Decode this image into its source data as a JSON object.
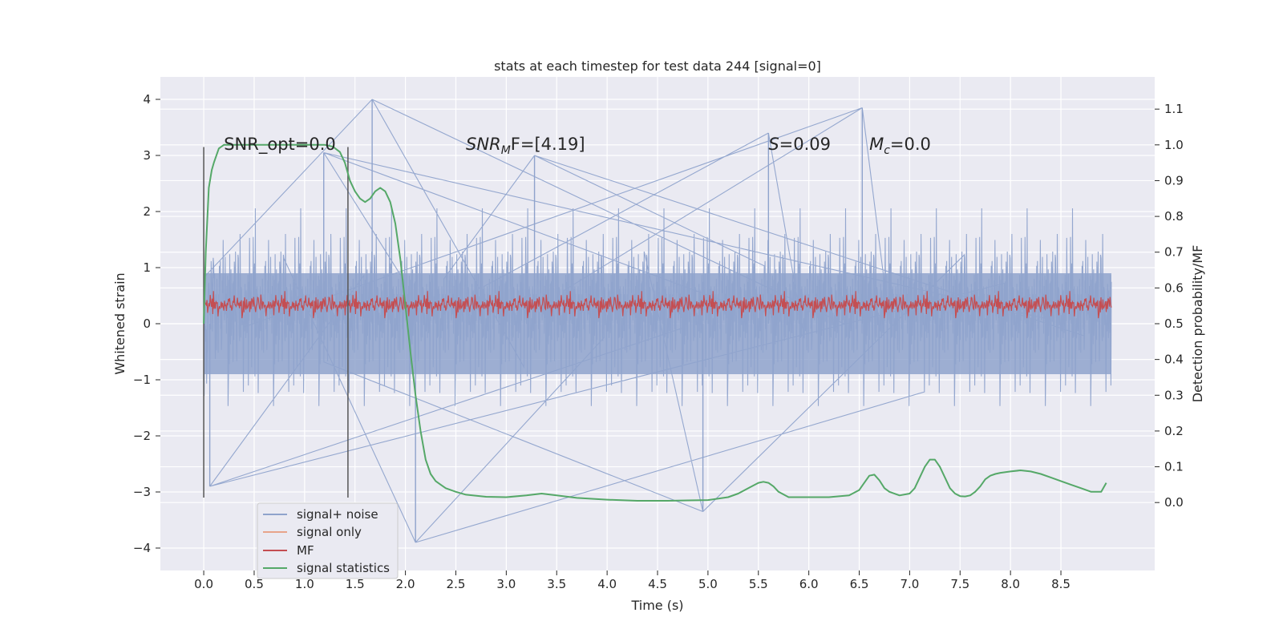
{
  "chart_data": {
    "type": "line",
    "title": "stats at each timestep for test data 244 [signal=0]",
    "xlabel": "Time (s)",
    "ylabel": "Whitened strain",
    "y2label": "Detection probability/MF",
    "xlim": [
      -0.43,
      9.43
    ],
    "ylim": [
      -4.4,
      4.4
    ],
    "y2lim": [
      -0.19,
      1.19
    ],
    "xticks": [
      0.0,
      0.5,
      1.0,
      1.5,
      2.0,
      2.5,
      3.0,
      3.5,
      4.0,
      4.5,
      5.0,
      5.5,
      6.0,
      6.5,
      7.0,
      7.5,
      8.0,
      8.5
    ],
    "xtick_labels": [
      "0.0",
      "0.5",
      "1.0",
      "1.5",
      "2.0",
      "2.5",
      "3.0",
      "3.5",
      "4.0",
      "4.5",
      "5.0",
      "5.5",
      "6.0",
      "6.5",
      "7.0",
      "7.5",
      "8.0",
      "8.5"
    ],
    "yticks": [
      4,
      3,
      2,
      1,
      0,
      -1,
      -2,
      -3,
      -4
    ],
    "ytick_labels": [
      "4",
      "3",
      "2",
      "1",
      "0",
      "−1",
      "−2",
      "−3",
      "−4"
    ],
    "y2ticks": [
      1.1,
      1.0,
      0.9,
      0.8,
      0.7,
      0.6,
      0.5,
      0.4,
      0.3,
      0.2,
      0.1,
      0.0
    ],
    "y2tick_labels": [
      "1.1",
      "1.0",
      "0.9",
      "0.8",
      "0.7",
      "0.6",
      "0.5",
      "0.4",
      "0.3",
      "0.2",
      "0.1",
      "0.0"
    ],
    "grid": true,
    "legend_position": "lower-left",
    "legend": [
      {
        "name": "signal+ noise",
        "color": "#8fa3cc"
      },
      {
        "name": "signal only",
        "color": "#e8a48a"
      },
      {
        "name": "MF",
        "color": "#c44e52"
      },
      {
        "name": "signal statistics",
        "color": "#55a868"
      }
    ],
    "noise": {
      "name": "signal+ noise",
      "axis": "left",
      "x_range": [
        0.0,
        9.0
      ],
      "typical_envelope": [
        -2.1,
        2.0
      ],
      "max": 4.0,
      "min": -3.9,
      "peaks": [
        {
          "x": 1.67,
          "y": 4.0
        },
        {
          "x": 6.53,
          "y": 3.85
        },
        {
          "x": 2.1,
          "y": -3.9
        },
        {
          "x": 4.95,
          "y": -3.35
        },
        {
          "x": 0.06,
          "y": -2.9
        },
        {
          "x": 1.19,
          "y": 3.05
        },
        {
          "x": 3.28,
          "y": 3.0
        },
        {
          "x": 5.6,
          "y": 3.4
        }
      ]
    },
    "mf": {
      "name": "MF",
      "axis": "left",
      "x_range": [
        0.0,
        9.0
      ],
      "band_center": 0.3,
      "band_low": 0.1,
      "band_high": 0.6,
      "max": 0.9,
      "min": 0.05
    },
    "signal_statistics": {
      "name": "signal statistics",
      "axis": "right",
      "x": [
        0.0,
        0.02,
        0.05,
        0.08,
        0.1,
        0.15,
        0.2,
        0.3,
        0.5,
        0.8,
        1.0,
        1.1,
        1.2,
        1.28,
        1.35,
        1.4,
        1.45,
        1.5,
        1.55,
        1.6,
        1.65,
        1.7,
        1.75,
        1.8,
        1.85,
        1.9,
        1.95,
        2.0,
        2.05,
        2.1,
        2.15,
        2.2,
        2.25,
        2.3,
        2.35,
        2.4,
        2.5,
        2.6,
        2.8,
        3.0,
        3.2,
        3.35,
        3.5,
        3.7,
        4.0,
        4.3,
        4.6,
        4.8,
        5.0,
        5.2,
        5.3,
        5.4,
        5.5,
        5.55,
        5.6,
        5.65,
        5.7,
        5.8,
        6.0,
        6.2,
        6.4,
        6.5,
        6.55,
        6.6,
        6.65,
        6.7,
        6.75,
        6.8,
        6.9,
        7.0,
        7.05,
        7.1,
        7.15,
        7.2,
        7.25,
        7.3,
        7.35,
        7.4,
        7.45,
        7.5,
        7.55,
        7.6,
        7.65,
        7.7,
        7.75,
        7.8,
        7.85,
        7.9,
        8.0,
        8.1,
        8.2,
        8.3,
        8.4,
        8.5,
        8.6,
        8.7,
        8.8,
        8.9,
        8.95
      ],
      "y": [
        0.5,
        0.7,
        0.88,
        0.93,
        0.95,
        0.99,
        1.0,
        1.0,
        1.0,
        1.0,
        1.0,
        1.0,
        1.0,
        0.995,
        0.98,
        0.95,
        0.9,
        0.87,
        0.85,
        0.84,
        0.85,
        0.87,
        0.88,
        0.87,
        0.84,
        0.78,
        0.68,
        0.55,
        0.42,
        0.3,
        0.2,
        0.12,
        0.08,
        0.06,
        0.05,
        0.04,
        0.03,
        0.022,
        0.016,
        0.015,
        0.02,
        0.025,
        0.02,
        0.013,
        0.008,
        0.005,
        0.005,
        0.006,
        0.007,
        0.015,
        0.025,
        0.04,
        0.055,
        0.058,
        0.055,
        0.045,
        0.03,
        0.015,
        0.015,
        0.015,
        0.02,
        0.035,
        0.055,
        0.075,
        0.078,
        0.062,
        0.04,
        0.03,
        0.02,
        0.025,
        0.04,
        0.07,
        0.1,
        0.12,
        0.12,
        0.1,
        0.07,
        0.04,
        0.025,
        0.018,
        0.017,
        0.02,
        0.03,
        0.045,
        0.065,
        0.075,
        0.08,
        0.083,
        0.087,
        0.09,
        0.087,
        0.08,
        0.07,
        0.06,
        0.05,
        0.04,
        0.03,
        0.03,
        0.055
      ]
    },
    "vlines": [
      0.0,
      1.43
    ],
    "annotations": [
      {
        "text": "SNR_opt=0.0",
        "x": 0.2,
        "y": 3.2
      },
      {
        "text": "SNR",
        "sub": "M",
        "tail": "F=[4.19]",
        "italic": true,
        "x": 2.6,
        "y": 3.2
      },
      {
        "text": "S",
        "tail": "=0.09",
        "italic": true,
        "x": 5.6,
        "y": 3.2
      },
      {
        "text": "M",
        "sub": "c",
        "tail": "=0.0",
        "italic": true,
        "x": 6.6,
        "y": 3.2
      }
    ]
  }
}
